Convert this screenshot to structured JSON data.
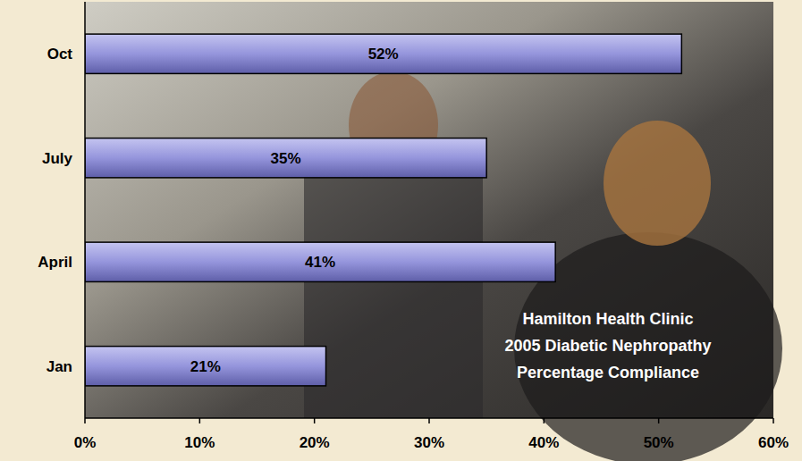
{
  "chart_data": {
    "type": "bar",
    "orientation": "horizontal",
    "title": "Hamilton Health Clinic\n2005 Diabetic Nephropathy\nPercentage Compliance",
    "categories": [
      "Jan",
      "April",
      "July",
      "Oct"
    ],
    "values": [
      21,
      41,
      35,
      52
    ],
    "value_labels": [
      "21%",
      "41%",
      "35%",
      "52%"
    ],
    "data_labels": true,
    "color": "#9595dc",
    "xlim": [
      0,
      60
    ],
    "xticks": [
      {
        "value": 0,
        "label": "0%"
      },
      {
        "value": 10,
        "label": "10%"
      },
      {
        "value": 20,
        "label": "20%"
      },
      {
        "value": 30,
        "label": "30%"
      },
      {
        "value": 40,
        "label": "40%"
      },
      {
        "value": 50,
        "label": "50%"
      },
      {
        "value": 60,
        "label": "60%"
      }
    ],
    "grid": false
  }
}
